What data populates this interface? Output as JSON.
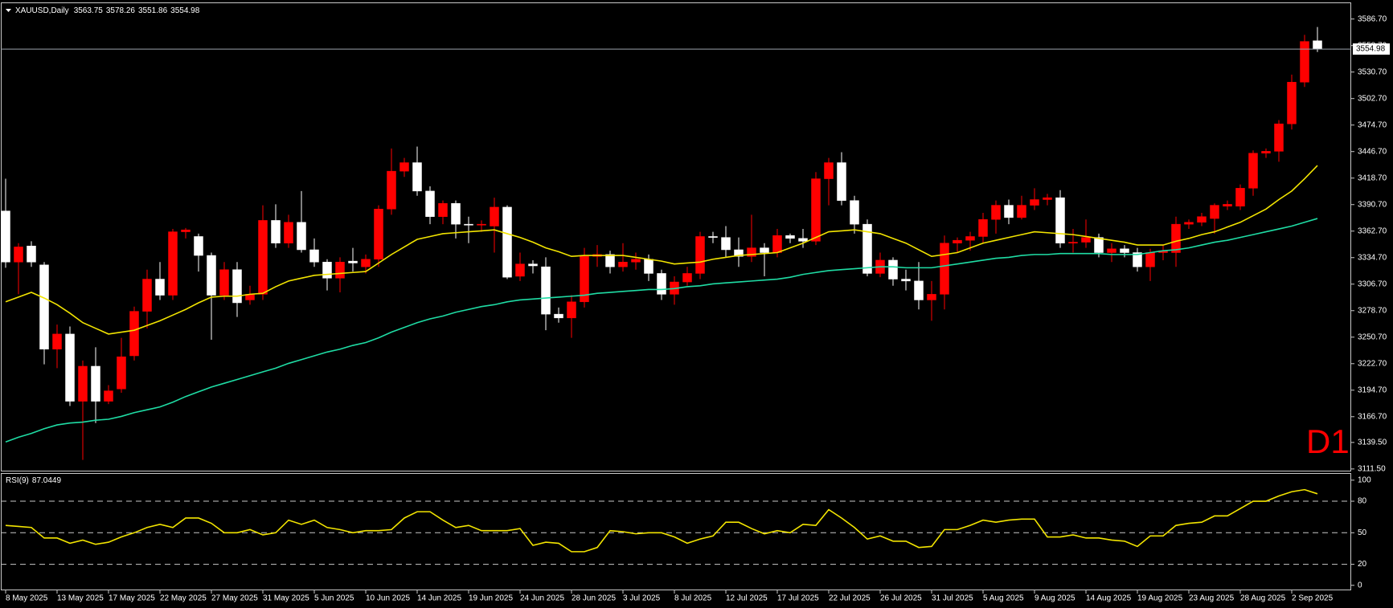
{
  "chart_data": [
    {
      "type": "candlestick",
      "symbol": "XAUUSD,Daily",
      "categories": [
        "8 May 2025",
        null,
        null,
        null,
        "13 May 2025",
        null,
        null,
        null,
        "17 May 2025",
        null,
        null,
        null,
        "22 May 2025",
        null,
        null,
        null,
        "27 May 2025",
        null,
        null,
        null,
        "31 May 2025",
        null,
        null,
        null,
        "5 Jun 2025",
        null,
        null,
        null,
        "10 Jun 2025",
        null,
        null,
        null,
        "14 Jun 2025",
        null,
        null,
        null,
        "19 Jun 2025",
        null,
        null,
        null,
        "24 Jun 2025",
        null,
        null,
        null,
        "28 Jun 2025",
        null,
        null,
        null,
        "3 Jul 2025",
        null,
        null,
        null,
        "8 Jul 2025",
        null,
        null,
        null,
        "12 Jul 2025",
        null,
        null,
        null,
        "17 Jul 2025",
        null,
        null,
        null,
        "22 Jul 2025",
        null,
        null,
        null,
        "26 Jul 2025",
        null,
        null,
        null,
        "31 Jul 2025",
        null,
        null,
        null,
        "5 Aug 2025",
        null,
        null,
        null,
        "9 Aug 2025",
        null,
        null,
        null,
        "14 Aug 2025",
        null,
        null,
        null,
        "19 Aug 2025",
        null,
        null,
        null,
        "23 Aug 2025",
        null,
        null,
        null,
        "28 Aug 2025",
        null,
        null,
        null,
        "2 Sep 2025",
        null,
        null
      ],
      "open": [
        3384,
        3330,
        3347,
        3327,
        3238,
        3254,
        3183,
        3220,
        3183,
        3196,
        3231,
        3278,
        3312,
        3295,
        3362,
        3357,
        3337,
        3295,
        3322,
        3290,
        3296,
        3374,
        3350,
        3372,
        3343,
        3330,
        3313,
        3331,
        3325,
        3333,
        3386,
        3426,
        3435,
        3405,
        3378,
        3392,
        3370,
        3369,
        3368,
        3388,
        3315,
        3328,
        3325,
        3275,
        3271,
        3288,
        3336,
        3338,
        3325,
        3330,
        3333,
        3318,
        3296,
        3309,
        3318,
        3357,
        3356,
        3343,
        3336,
        3345,
        3340,
        3358,
        3355,
        3352,
        3418,
        3435,
        3395,
        3370,
        3318,
        3332,
        3312,
        3310,
        3290,
        3296,
        3350,
        3353,
        3357,
        3375,
        3390,
        3377,
        3390,
        3396,
        3398,
        3350,
        3351,
        3356,
        3340,
        3344,
        3340,
        3325,
        3340,
        3340,
        3370,
        3372,
        3376,
        3389,
        3389,
        3408,
        3445,
        3447,
        3476,
        3520,
        3563.75
      ],
      "high": [
        3418,
        3350,
        3352,
        3330,
        3264,
        3262,
        3226,
        3240,
        3200,
        3250,
        3283,
        3322,
        3330,
        3365,
        3366,
        3360,
        3340,
        3330,
        3330,
        3305,
        3390,
        3391,
        3380,
        3405,
        3355,
        3333,
        3335,
        3345,
        3338,
        3390,
        3450,
        3440,
        3452,
        3410,
        3395,
        3395,
        3378,
        3374,
        3398,
        3390,
        3340,
        3332,
        3335,
        3282,
        3295,
        3345,
        3348,
        3342,
        3350,
        3340,
        3338,
        3322,
        3315,
        3325,
        3362,
        3362,
        3368,
        3356,
        3380,
        3350,
        3365,
        3360,
        3365,
        3425,
        3440,
        3446,
        3400,
        3375,
        3340,
        3335,
        3322,
        3330,
        3310,
        3358,
        3356,
        3362,
        3382,
        3395,
        3396,
        3400,
        3408,
        3402,
        3406,
        3365,
        3375,
        3360,
        3350,
        3348,
        3345,
        3344,
        3348,
        3378,
        3375,
        3382,
        3392,
        3395,
        3412,
        3448,
        3450,
        3480,
        3528,
        3570,
        3578.26
      ],
      "low": [
        3324,
        3296,
        3325,
        3222,
        3218,
        3178,
        3121,
        3160,
        3180,
        3192,
        3226,
        3260,
        3290,
        3290,
        3355,
        3320,
        3248,
        3290,
        3272,
        3285,
        3290,
        3345,
        3345,
        3340,
        3325,
        3300,
        3298,
        3320,
        3318,
        3325,
        3380,
        3420,
        3400,
        3370,
        3370,
        3355,
        3350,
        3362,
        3340,
        3312,
        3310,
        3318,
        3258,
        3266,
        3250,
        3282,
        3325,
        3318,
        3320,
        3322,
        3310,
        3290,
        3285,
        3305,
        3312,
        3350,
        3335,
        3325,
        3330,
        3315,
        3335,
        3350,
        3345,
        3348,
        3390,
        3390,
        3360,
        3315,
        3314,
        3305,
        3300,
        3280,
        3268,
        3280,
        3340,
        3342,
        3350,
        3360,
        3370,
        3375,
        3385,
        3390,
        3345,
        3340,
        3345,
        3335,
        3330,
        3335,
        3320,
        3310,
        3332,
        3325,
        3365,
        3368,
        3360,
        3385,
        3385,
        3400,
        3440,
        3436,
        3470,
        3515,
        3551.86
      ],
      "close": [
        3330,
        3346,
        3330,
        3238,
        3254,
        3183,
        3220,
        3183,
        3194,
        3230,
        3278,
        3312,
        3295,
        3362,
        3364,
        3337,
        3295,
        3322,
        3287,
        3296,
        3374,
        3350,
        3372,
        3343,
        3330,
        3313,
        3330,
        3329,
        3333,
        3386,
        3426,
        3435,
        3405,
        3378,
        3392,
        3370,
        3369,
        3370,
        3388,
        3314,
        3328,
        3326,
        3275,
        3271,
        3288,
        3336,
        3338,
        3325,
        3330,
        3333,
        3318,
        3296,
        3309,
        3318,
        3357,
        3356,
        3343,
        3336,
        3345,
        3340,
        3358,
        3355,
        3352,
        3418,
        3435,
        3395,
        3370,
        3318,
        3332,
        3312,
        3310,
        3290,
        3296,
        3350,
        3353,
        3357,
        3375,
        3390,
        3377,
        3390,
        3396,
        3398,
        3350,
        3351,
        3356,
        3340,
        3344,
        3340,
        3325,
        3340,
        3342,
        3370,
        3372,
        3378,
        3390,
        3391,
        3408,
        3445,
        3447,
        3476,
        3520,
        3563,
        3554.98
      ],
      "up_color": "#ff0000",
      "down_color": "#ffffff",
      "overlays": [
        {
          "color": "#f2e400",
          "values": [
            3288,
            3293,
            3298,
            3292,
            3285,
            3276,
            3266,
            3260,
            3254,
            3256,
            3258,
            3263,
            3268,
            3274,
            3280,
            3287,
            3293,
            3294,
            3294,
            3296,
            3297,
            3304,
            3310,
            3313,
            3316,
            3317,
            3318,
            3319,
            3320,
            3329,
            3338,
            3346,
            3354,
            3357,
            3360,
            3361,
            3362,
            3363,
            3364,
            3360,
            3356,
            3351,
            3345,
            3341,
            3336,
            3337,
            3337,
            3337,
            3337,
            3335,
            3333,
            3331,
            3328,
            3329,
            3330,
            3333,
            3335,
            3337,
            3338,
            3339,
            3340,
            3345,
            3350,
            3356,
            3362,
            3363,
            3364,
            3362,
            3360,
            3355,
            3350,
            3343,
            3336,
            3338,
            3340,
            3345,
            3350,
            3353,
            3356,
            3359,
            3362,
            3361,
            3360,
            3359,
            3357,
            3355,
            3353,
            3351,
            3348,
            3348,
            3348,
            3352,
            3355,
            3359,
            3362,
            3367,
            3372,
            3379,
            3386,
            3396,
            3405,
            3418,
            3432
          ]
        },
        {
          "color": "#1fdca4",
          "values": [
            3140,
            3145,
            3149,
            3154,
            3158,
            3160,
            3161,
            3163,
            3164,
            3167,
            3171,
            3174,
            3177,
            3182,
            3188,
            3193,
            3198,
            3202,
            3206,
            3210,
            3214,
            3218,
            3223,
            3227,
            3231,
            3235,
            3238,
            3242,
            3245,
            3250,
            3256,
            3261,
            3266,
            3270,
            3273,
            3277,
            3280,
            3283,
            3285,
            3288,
            3290,
            3291,
            3292,
            3293,
            3294,
            3295,
            3297,
            3298,
            3299,
            3300,
            3301,
            3301,
            3302,
            3304,
            3305,
            3307,
            3308,
            3309,
            3310,
            3311,
            3312,
            3314,
            3317,
            3319,
            3321,
            3322,
            3323,
            3324,
            3325,
            3325,
            3324,
            3324,
            3324,
            3326,
            3328,
            3330,
            3332,
            3334,
            3335,
            3337,
            3338,
            3338,
            3339,
            3339,
            3339,
            3339,
            3338,
            3338,
            3338,
            3340,
            3342,
            3343,
            3345,
            3348,
            3351,
            3353,
            3356,
            3359,
            3362,
            3365,
            3368,
            3372,
            3376
          ]
        }
      ],
      "ylim": [
        3109.7,
        3601.7
      ],
      "yticks": [
        {
          "value": 3586.7,
          "label": "3586.70"
        },
        {
          "value": 3558.7,
          "label": "3558.70"
        },
        {
          "value": 3530.7,
          "label": "3530.70"
        },
        {
          "value": 3502.7,
          "label": "3502.70"
        },
        {
          "value": 3474.7,
          "label": "3474.70"
        },
        {
          "value": 3446.7,
          "label": "3446.70"
        },
        {
          "value": 3418.7,
          "label": "3418.70"
        },
        {
          "value": 3390.7,
          "label": "3390.70"
        },
        {
          "value": 3362.7,
          "label": "3362.70"
        },
        {
          "value": 3334.7,
          "label": "3334.70"
        },
        {
          "value": 3306.7,
          "label": "3306.70"
        },
        {
          "value": 3278.7,
          "label": "3278.70"
        },
        {
          "value": 3250.7,
          "label": "3250.70"
        },
        {
          "value": 3222.7,
          "label": "3222.70"
        },
        {
          "value": 3194.7,
          "label": "3194.70"
        },
        {
          "value": 3166.7,
          "label": "3166.70"
        },
        {
          "value": 3139.5,
          "label": "3139.50"
        },
        {
          "value": 3111.5,
          "label": "3111.50"
        }
      ],
      "annotation": "D1",
      "annotation_color": "#ff0000"
    },
    {
      "type": "line",
      "title": "RSI(9)",
      "color": "#f2e400",
      "values": [
        57,
        56,
        55,
        45,
        45,
        40,
        43,
        39,
        41,
        46,
        50,
        55,
        58,
        55,
        64,
        64,
        59,
        50,
        50,
        53,
        48,
        50,
        62,
        58,
        62,
        55,
        53,
        50,
        52,
        52,
        53,
        64,
        70,
        70,
        62,
        55,
        57,
        52,
        52,
        52,
        54,
        38,
        41,
        40,
        32,
        32,
        36,
        52,
        51,
        49,
        50,
        50,
        46,
        40,
        44,
        47,
        60,
        60,
        54,
        49,
        52,
        50,
        58,
        57,
        72,
        64,
        55,
        44,
        47,
        42,
        42,
        36,
        37,
        53,
        53,
        57,
        62,
        60,
        62,
        63,
        63,
        46,
        46,
        48,
        45,
        45,
        43,
        42,
        37,
        47,
        47,
        57,
        59,
        60,
        66,
        66,
        73,
        80,
        80,
        85,
        89,
        91,
        87.0449
      ],
      "ylim": [
        -4,
        106
      ],
      "yticks": [
        100,
        80,
        50,
        20,
        0
      ],
      "levels": [
        80,
        50,
        20
      ]
    }
  ]
}
